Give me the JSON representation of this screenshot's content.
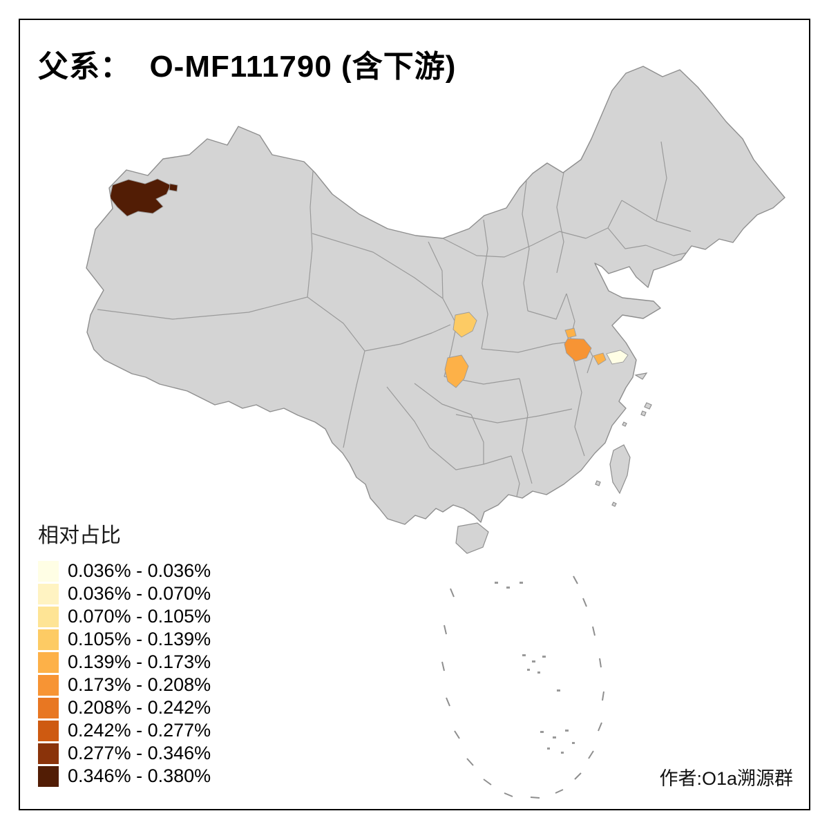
{
  "title": "父系：  O-MF111790 (含下游)",
  "credit": "作者:O1a溯源群",
  "legend": {
    "title": "相对占比",
    "entries": [
      {
        "label": "0.036% - 0.036%",
        "color": "#FFFEE5"
      },
      {
        "label": "0.036% - 0.070%",
        "color": "#FFF3C2"
      },
      {
        "label": "0.070% - 0.105%",
        "color": "#FEE495"
      },
      {
        "label": "0.105% - 0.139%",
        "color": "#FDCB64"
      },
      {
        "label": "0.139% - 0.173%",
        "color": "#FDB148"
      },
      {
        "label": "0.173% - 0.208%",
        "color": "#F79434"
      },
      {
        "label": "0.208% - 0.242%",
        "color": "#E87722"
      },
      {
        "label": "0.242% - 0.277%",
        "color": "#CE5A11"
      },
      {
        "label": "0.277% - 0.346%",
        "color": "#8A330A"
      },
      {
        "label": "0.346% - 0.380%",
        "color": "#521D05"
      }
    ]
  },
  "map": {
    "base_fill": "#D4D4D4",
    "border_color": "#8E8E8E",
    "regions": {
      "west_large": {
        "color": "#521D05",
        "bin": "0.346% - 0.380%"
      },
      "west_small": {
        "color": "#521D05",
        "bin": "0.346% - 0.380%"
      },
      "central_north": {
        "color": "#FDCB64",
        "bin": "0.105% - 0.139%"
      },
      "central_south": {
        "color": "#FDB148",
        "bin": "0.139% - 0.173%"
      },
      "east_upper": {
        "color": "#FDB148",
        "bin": "0.139% - 0.173%"
      },
      "east_main": {
        "color": "#F79434",
        "bin": "0.173% - 0.208%"
      },
      "east_mid": {
        "color": "#FDB148",
        "bin": "0.139% - 0.173%"
      },
      "east_pale": {
        "color": "#FFFEE5",
        "bin": "0.036% - 0.036%"
      }
    }
  }
}
